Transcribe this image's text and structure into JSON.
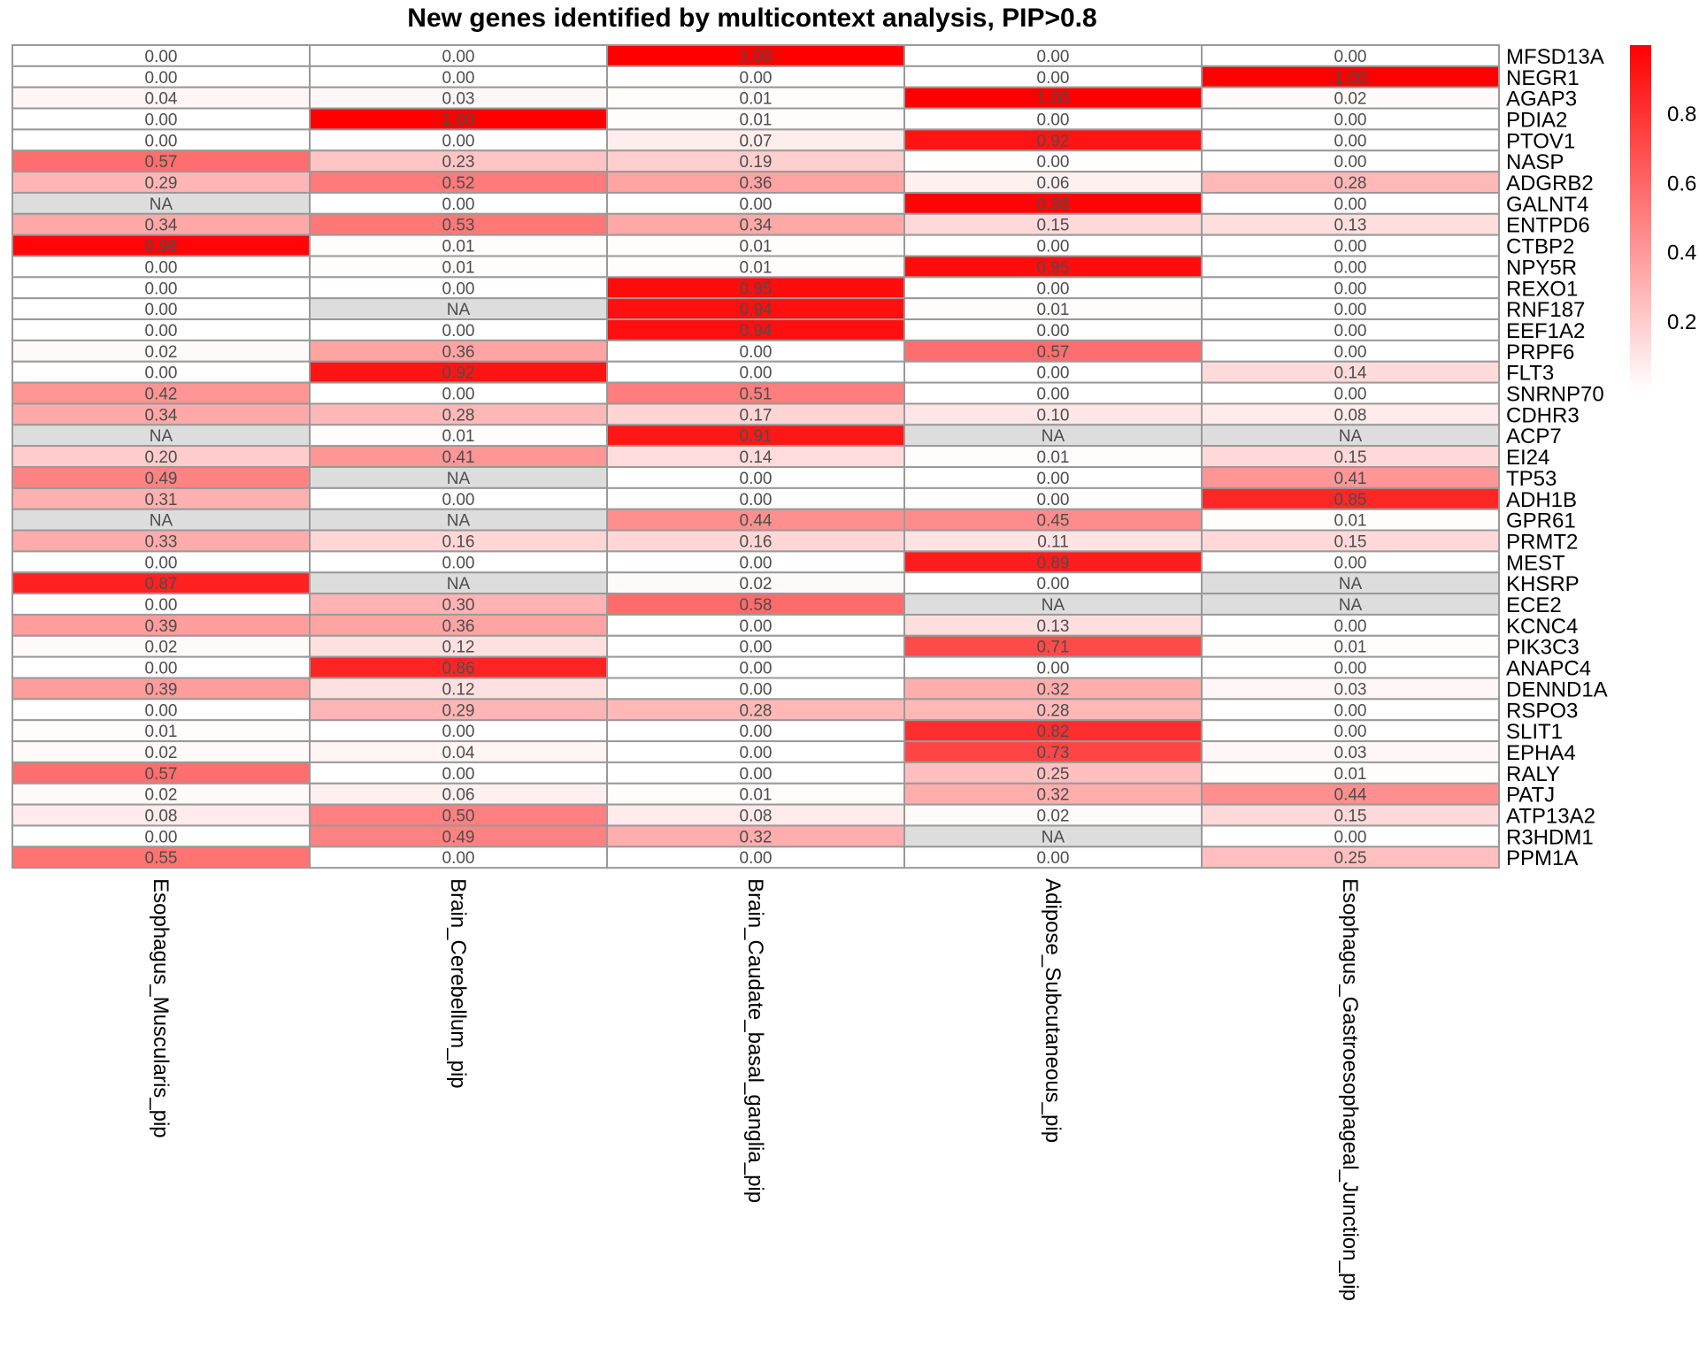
{
  "chart_data": {
    "type": "heatmap",
    "title": "New genes identified by multicontext analysis, PIP>0.8",
    "columns": [
      "Esophagus_Muscularis_pip",
      "Brain_Cerebellum_pip",
      "Brain_Caudate_basal_ganglia_pip",
      "Adipose_Subcutaneous_pip",
      "Esophagus_Gastroesophageal_Junction_pip"
    ],
    "rows": [
      "MFSD13A",
      "NEGR1",
      "AGAP3",
      "PDIA2",
      "PTOV1",
      "NASP",
      "ADGRB2",
      "GALNT4",
      "ENTPD6",
      "CTBP2",
      "NPY5R",
      "REXO1",
      "RNF187",
      "EEF1A2",
      "PRPF6",
      "FLT3",
      "SNRNP70",
      "CDHR3",
      "ACP7",
      "EI24",
      "TP53",
      "ADH1B",
      "GPR61",
      "PRMT2",
      "MEST",
      "KHSRP",
      "ECE2",
      "KCNC4",
      "PIK3C3",
      "ANAPC4",
      "DENND1A",
      "RSPO3",
      "SLIT1",
      "EPHA4",
      "RALY",
      "PATJ",
      "ATP13A2",
      "R3HDM1",
      "PPM1A"
    ],
    "values": [
      [
        "0.00",
        "0.00",
        "1.00",
        "0.00",
        "0.00"
      ],
      [
        "0.00",
        "0.00",
        "0.00",
        "0.00",
        "1.00"
      ],
      [
        "0.04",
        "0.03",
        "0.01",
        "1.00",
        "0.02"
      ],
      [
        "0.00",
        "1.00",
        "0.01",
        "0.00",
        "0.00"
      ],
      [
        "0.00",
        "0.00",
        "0.07",
        "0.92",
        "0.00"
      ],
      [
        "0.57",
        "0.23",
        "0.19",
        "0.00",
        "0.00"
      ],
      [
        "0.29",
        "0.52",
        "0.36",
        "0.06",
        "0.28"
      ],
      [
        "NA",
        "0.00",
        "0.00",
        "0.98",
        "0.00"
      ],
      [
        "0.34",
        "0.53",
        "0.34",
        "0.15",
        "0.13"
      ],
      [
        "0.98",
        "0.01",
        "0.01",
        "0.00",
        "0.00"
      ],
      [
        "0.00",
        "0.01",
        "0.01",
        "0.95",
        "0.00"
      ],
      [
        "0.00",
        "0.00",
        "0.95",
        "0.00",
        "0.00"
      ],
      [
        "0.00",
        "NA",
        "0.94",
        "0.01",
        "0.00"
      ],
      [
        "0.00",
        "0.00",
        "0.94",
        "0.00",
        "0.00"
      ],
      [
        "0.02",
        "0.36",
        "0.00",
        "0.57",
        "0.00"
      ],
      [
        "0.00",
        "0.92",
        "0.00",
        "0.00",
        "0.14"
      ],
      [
        "0.42",
        "0.00",
        "0.51",
        "0.00",
        "0.00"
      ],
      [
        "0.34",
        "0.28",
        "0.17",
        "0.10",
        "0.08"
      ],
      [
        "NA",
        "0.01",
        "0.91",
        "NA",
        "NA"
      ],
      [
        "0.20",
        "0.41",
        "0.14",
        "0.01",
        "0.15"
      ],
      [
        "0.49",
        "NA",
        "0.00",
        "0.00",
        "0.41"
      ],
      [
        "0.31",
        "0.00",
        "0.00",
        "0.00",
        "0.85"
      ],
      [
        "NA",
        "NA",
        "0.44",
        "0.45",
        "0.01"
      ],
      [
        "0.33",
        "0.16",
        "0.16",
        "0.11",
        "0.15"
      ],
      [
        "0.00",
        "0.00",
        "0.00",
        "0.89",
        "0.00"
      ],
      [
        "0.87",
        "NA",
        "0.02",
        "0.00",
        "NA"
      ],
      [
        "0.00",
        "0.30",
        "0.58",
        "NA",
        "NA"
      ],
      [
        "0.39",
        "0.36",
        "0.00",
        "0.13",
        "0.00"
      ],
      [
        "0.02",
        "0.12",
        "0.00",
        "0.71",
        "0.01"
      ],
      [
        "0.00",
        "0.86",
        "0.00",
        "0.00",
        "0.00"
      ],
      [
        "0.39",
        "0.12",
        "0.00",
        "0.32",
        "0.03"
      ],
      [
        "0.00",
        "0.29",
        "0.28",
        "0.28",
        "0.00"
      ],
      [
        "0.01",
        "0.00",
        "0.00",
        "0.82",
        "0.00"
      ],
      [
        "0.02",
        "0.04",
        "0.00",
        "0.73",
        "0.03"
      ],
      [
        "0.57",
        "0.00",
        "0.00",
        "0.25",
        "0.01"
      ],
      [
        "0.02",
        "0.06",
        "0.01",
        "0.32",
        "0.44"
      ],
      [
        "0.08",
        "0.50",
        "0.08",
        "0.02",
        "0.15"
      ],
      [
        "0.00",
        "0.49",
        "0.32",
        "NA",
        "0.00"
      ],
      [
        "0.55",
        "0.00",
        "0.00",
        "0.00",
        "0.25"
      ]
    ],
    "na_label": "NA",
    "legend": {
      "ticks": [
        "0.2",
        "0.4",
        "0.6",
        "0.8"
      ],
      "range": [
        0,
        1
      ],
      "low_color": "#ffffff",
      "high_color": "#ff0000",
      "placement": "right"
    },
    "colors": {
      "high": "#ff0000",
      "low": "#ffffff",
      "na": "#dddddd",
      "border": "#999999",
      "text": "#4d4d4d"
    }
  }
}
